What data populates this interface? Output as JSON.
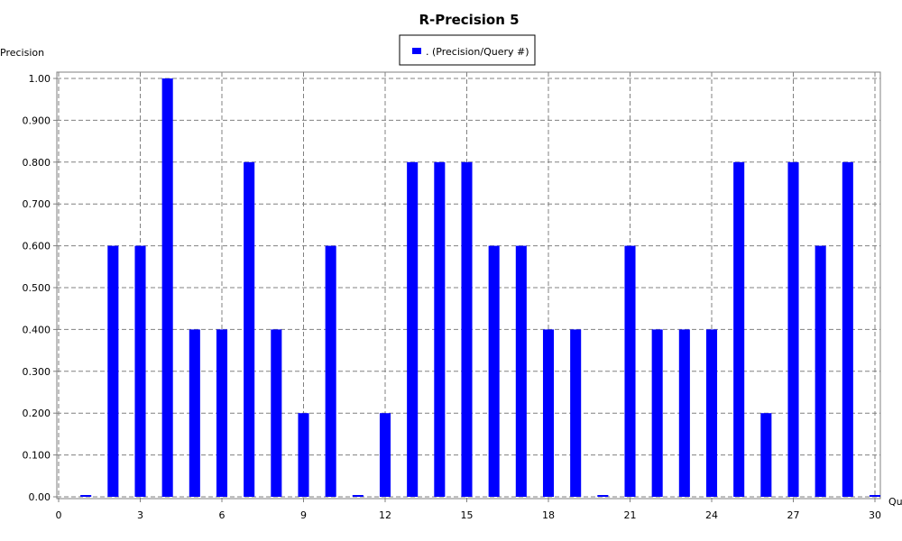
{
  "chart_data": {
    "type": "bar",
    "title": "R-Precision 5",
    "xlabel": "Qu",
    "ylabel": "Precision",
    "legend": {
      "placement": "top-center",
      "entries": [
        ". (Precision/Query #)"
      ]
    },
    "x": [
      1,
      2,
      3,
      4,
      5,
      6,
      7,
      8,
      9,
      10,
      11,
      12,
      13,
      14,
      15,
      16,
      17,
      18,
      19,
      20,
      21,
      22,
      23,
      24,
      25,
      26,
      27,
      28,
      29,
      30
    ],
    "values": [
      0.0,
      0.6,
      0.6,
      1.0,
      0.4,
      0.4,
      0.8,
      0.4,
      0.2,
      0.6,
      0.0,
      0.2,
      0.8,
      0.8,
      0.8,
      0.6,
      0.6,
      0.4,
      0.4,
      0.0,
      0.6,
      0.4,
      0.4,
      0.4,
      0.8,
      0.2,
      0.8,
      0.6,
      0.8,
      0.0
    ],
    "xlim": [
      0,
      30
    ],
    "ylim": [
      0,
      1
    ],
    "xticks": [
      0,
      3,
      6,
      9,
      12,
      15,
      18,
      21,
      24,
      27,
      30
    ],
    "yticks": [
      "0.00",
      "0.100",
      "0.200",
      "0.300",
      "0.400",
      "0.500",
      "0.600",
      "0.700",
      "0.800",
      "0.900",
      "1.00"
    ],
    "grid": true,
    "bar_color": "#0000FF"
  }
}
